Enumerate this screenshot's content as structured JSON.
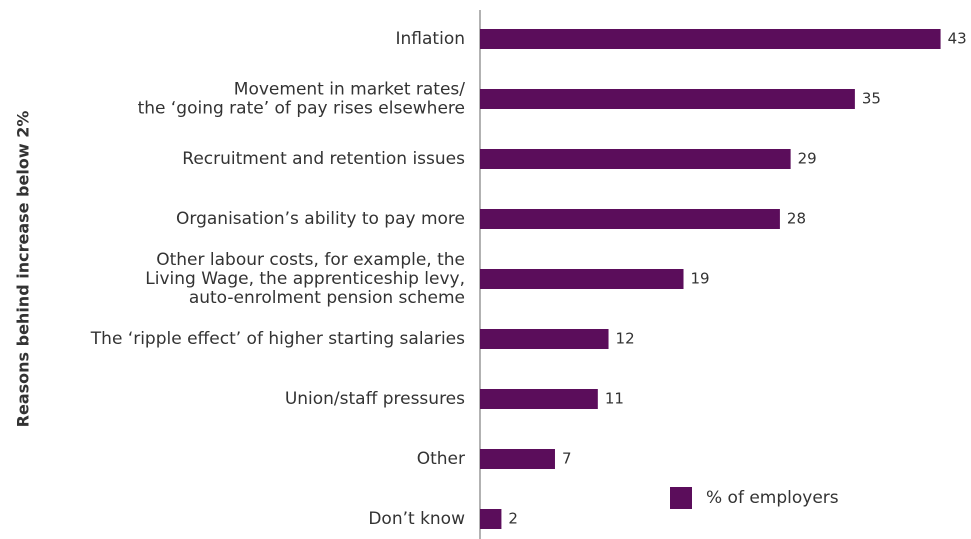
{
  "chart_data": {
    "type": "barh",
    "ylabel": "Reasons behind increase below 2%",
    "categories": [
      "Inflation",
      "Movement in market rates/\nthe ‘going rate’ of pay rises elsewhere",
      "Recruitment and retention issues",
      "Organisation’s ability to pay more",
      "Other labour costs, for example, the\nLiving Wage, the apprenticeship levy,\nauto-enrolment pension scheme",
      "The ‘ripple effect’ of higher starting salaries",
      "Union/staff pressures",
      "Other",
      "Don’t know"
    ],
    "series": [
      {
        "name": "% of employers",
        "color": "#5b0d5b",
        "values": [
          43,
          35,
          29,
          28,
          19,
          12,
          11,
          7,
          2
        ]
      }
    ],
    "xlim": [
      0,
      45
    ],
    "legend": "lower right"
  }
}
